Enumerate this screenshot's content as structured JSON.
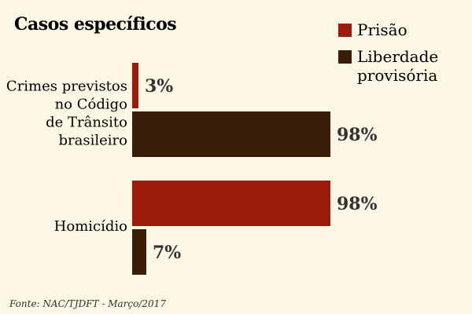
{
  "chart_data": {
    "type": "bar",
    "orientation": "horizontal",
    "title": "Casos específicos",
    "categories": [
      [
        "Crimes previstos",
        "no Código",
        "de Trânsito",
        "brasileiro"
      ],
      [
        "Homicídio"
      ]
    ],
    "series": [
      {
        "name": "Prisão",
        "color": "#9c1c0c",
        "values": [
          3,
          98
        ],
        "labels": [
          "3%",
          "98%"
        ]
      },
      {
        "name": "Liberdade provisória",
        "legend_lines": [
          "Liberdade",
          "provisória"
        ],
        "color": "#3a1e08",
        "values": [
          98,
          7
        ],
        "labels": [
          "98%",
          "7%"
        ]
      }
    ],
    "xlim": [
      0,
      100
    ],
    "grid": false,
    "legend_placement": "top-right"
  },
  "source": "Fonte: NAC/TJDFT - Março/2017"
}
